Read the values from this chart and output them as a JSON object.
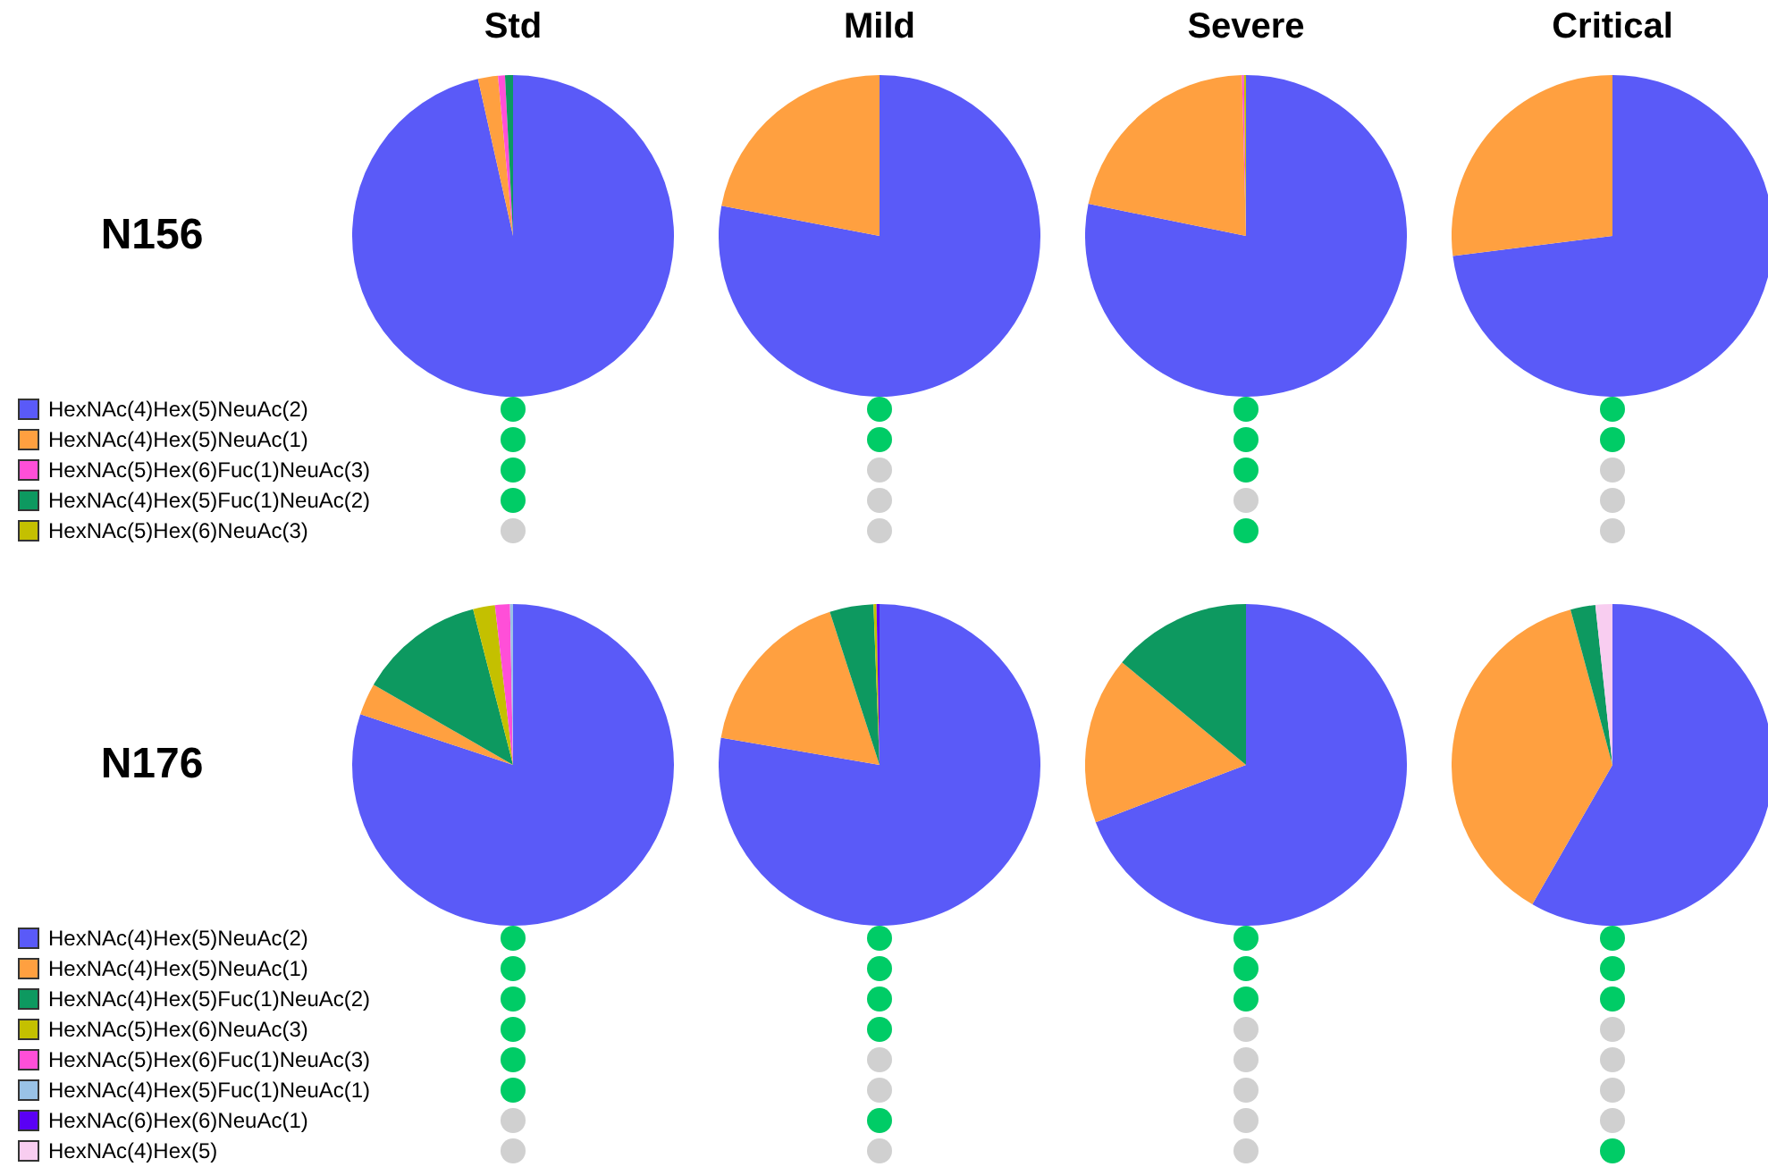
{
  "chart_data": [
    {
      "type": "pie",
      "title": "Std",
      "ylabel": "N156",
      "legend": "bottom left",
      "categories": [
        "HexNAc(4)Hex(5)NeuAc(2)",
        "HexNAc(4)Hex(5)NeuAc(1)",
        "HexNAc(5)Hex(6)Fuc(1)NeuAc(3)",
        "HexNAc(4)Hex(5)Fuc(1)NeuAc(2)",
        "HexNAc(5)Hex(6)NeuAc(3)"
      ],
      "values": [
        96.5,
        2,
        0.7,
        0.8,
        0
      ],
      "colors": [
        "#5a5af8",
        "#ffa040",
        "#ff4fd8",
        "#0d9960",
        "#c4c000"
      ]
    },
    {
      "type": "pie",
      "title": "Mild",
      "categories": [
        null,
        null,
        null,
        null,
        null
      ],
      "values": [
        78,
        22,
        0,
        0,
        0
      ],
      "colors": [
        "#5a5af8",
        "#ffa040",
        "#ff4fd8",
        "#0d9960",
        "#c4c000"
      ]
    },
    {
      "type": "pie",
      "title": "Severe",
      "categories": [
        null,
        null,
        null,
        null,
        null
      ],
      "values": [
        78.2,
        21.4,
        0.2,
        0,
        0.2
      ],
      "colors": [
        "#5a5af8",
        "#ffa040",
        "#ff4fd8",
        "#0d9960",
        "#c4c000"
      ]
    },
    {
      "type": "pie",
      "title": "Critical",
      "categories": [
        null,
        null,
        null,
        null,
        null
      ],
      "values": [
        73,
        27,
        0,
        0,
        0
      ],
      "colors": [
        "#5a5af8",
        "#ffa040",
        "#ff4fd8",
        "#0d9960",
        "#c4c000"
      ]
    },
    {
      "type": "pie",
      "ylabel": "N176",
      "legend": "bottom left",
      "categories": [
        "HexNAc(4)Hex(5)NeuAc(2)",
        "HexNAc(4)Hex(5)NeuAc(1)",
        "HexNAc(4)Hex(5)Fuc(1)NeuAc(2)",
        "HexNAc(5)Hex(6)NeuAc(3)",
        "HexNAc(5)Hex(6)Fuc(1)NeuAc(3)",
        "HexNAc(4)Hex(5)Fuc(1)NeuAc(1)",
        "HexNAc(6)Hex(6)NeuAc(1)",
        "HexNAc(4)Hex(5)"
      ],
      "values": [
        80.1,
        3.2,
        12.7,
        2.2,
        1.5,
        0.3,
        0,
        0
      ],
      "colors": [
        "#5a5af8",
        "#ffa040",
        "#0d9960",
        "#c4c000",
        "#ff4fd8",
        "#99c2e6",
        "#5a00f5",
        "#f8cdf0"
      ]
    },
    {
      "type": "pie",
      "categories": [
        null,
        null,
        null,
        null,
        null,
        null,
        null,
        null
      ],
      "values": [
        77.7,
        17.3,
        4.4,
        0.3,
        0,
        0,
        0.3,
        0
      ],
      "colors": [
        "#5a5af8",
        "#ffa040",
        "#0d9960",
        "#c4c000",
        "#ff4fd8",
        "#99c2e6",
        "#5a00f5",
        "#f8cdf0"
      ]
    },
    {
      "type": "pie",
      "categories": [
        null,
        null,
        null,
        null,
        null,
        null,
        null,
        null
      ],
      "values": [
        69.2,
        16.8,
        14,
        0,
        0,
        0,
        0,
        0
      ],
      "colors": [
        "#5a5af8",
        "#ffa040",
        "#0d9960",
        "#c4c000",
        "#ff4fd8",
        "#99c2e6",
        "#5a00f5",
        "#f8cdf0"
      ]
    },
    {
      "type": "pie",
      "categories": [
        null,
        null,
        null,
        null,
        null,
        null,
        null,
        null
      ],
      "values": [
        58.3,
        37.5,
        2.5,
        0,
        0,
        0,
        0,
        1.7
      ],
      "colors": [
        "#5a5af8",
        "#ffa040",
        "#0d9960",
        "#c4c000",
        "#ff4fd8",
        "#99c2e6",
        "#5a00f5",
        "#f8cdf0"
      ]
    }
  ]
}
